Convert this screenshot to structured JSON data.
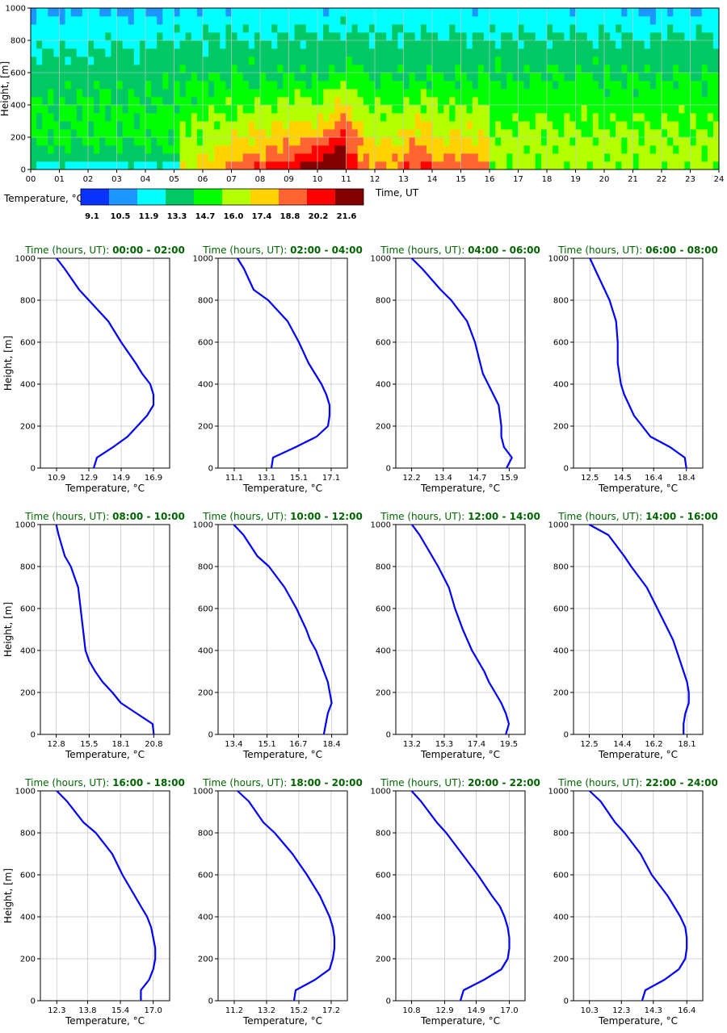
{
  "heatmap": {
    "ylabel": "Height, [m]",
    "xlabel": "Time, UT",
    "x_ticks": [
      "00",
      "01",
      "02",
      "03",
      "04",
      "05",
      "06",
      "07",
      "08",
      "09",
      "10",
      "11",
      "12",
      "13",
      "14",
      "15",
      "16",
      "17",
      "18",
      "19",
      "20",
      "21",
      "22",
      "23",
      "24"
    ],
    "y_ticks": [
      "0",
      "200",
      "400",
      "600",
      "800",
      "1000"
    ],
    "colorbar_label": "Temperature, °C",
    "colorbar_ticks": [
      "9.1",
      "10.5",
      "11.9",
      "13.3",
      "14.7",
      "16.0",
      "17.4",
      "18.8",
      "20.2",
      "21.6"
    ],
    "colors": [
      "#0a32ff",
      "#1e96ff",
      "#00ffff",
      "#00c864",
      "#00ff00",
      "#b4ff00",
      "#ffd200",
      "#ff6432",
      "#ff0000",
      "#820000"
    ]
  },
  "chart_data": [
    {
      "type": "heatmap",
      "xlabel": "Time, UT",
      "ylabel": "Height, [m]",
      "xlim": [
        0,
        24
      ],
      "ylim": [
        0,
        1000
      ],
      "colorbar": {
        "label": "Temperature, °C",
        "levels": [
          9.1,
          10.5,
          11.9,
          13.3,
          14.7,
          16.0,
          17.4,
          18.8,
          20.2,
          21.6
        ]
      },
      "height": [
        0,
        50,
        100,
        150,
        200,
        250,
        300,
        350,
        400,
        450,
        500,
        550,
        600,
        650,
        700,
        750,
        800,
        850,
        900,
        950,
        1000
      ],
      "time_hours": [
        0,
        1,
        2,
        3,
        4,
        5,
        6,
        7,
        8,
        9,
        10,
        11,
        12,
        13,
        14,
        15,
        16,
        17,
        18,
        19,
        20,
        21,
        22,
        23,
        24
      ]
    },
    {
      "type": "line",
      "title_label": "Time (hours, UT):",
      "title_value": "00:00 - 02:00",
      "xlabel": "Temperature, °C",
      "ylabel": "Height, [m]",
      "x_ticks": [
        "10.9",
        "12.9",
        "14.9",
        "16.9"
      ],
      "xlim": [
        9.9,
        17.9
      ],
      "ylim": [
        0,
        1000
      ],
      "y_ticks": [
        "0",
        "200",
        "400",
        "600",
        "800",
        "1000"
      ],
      "x": [
        13.2,
        13.4,
        14.4,
        15.3,
        15.9,
        16.5,
        16.9,
        16.9,
        16.7,
        16.2,
        15.8,
        14.9,
        14.1,
        12.9,
        12.3,
        11.4,
        10.9
      ],
      "y": [
        0,
        50,
        100,
        150,
        200,
        250,
        300,
        350,
        400,
        450,
        500,
        600,
        700,
        800,
        850,
        950,
        1000
      ]
    },
    {
      "type": "line",
      "title_label": "Time (hours, UT):",
      "title_value": "02:00 - 04:00",
      "xlabel": "Temperature, °C",
      "ylabel": "Height, [m]",
      "x_ticks": [
        "11.1",
        "13.1",
        "15.1",
        "17.1"
      ],
      "xlim": [
        10.1,
        18.1
      ],
      "ylim": [
        0,
        1000
      ],
      "y_ticks": [
        "0",
        "200",
        "400",
        "600",
        "800",
        "1000"
      ],
      "x": [
        13.4,
        13.5,
        14.9,
        16.2,
        16.9,
        17.0,
        17.0,
        16.8,
        16.5,
        16.1,
        15.7,
        15.1,
        14.4,
        13.2,
        12.3,
        11.7,
        11.3
      ],
      "y": [
        0,
        50,
        100,
        150,
        200,
        250,
        300,
        350,
        400,
        450,
        500,
        600,
        700,
        800,
        850,
        950,
        1000
      ]
    },
    {
      "type": "line",
      "title_label": "Time (hours, UT):",
      "title_value": "04:00 - 06:00",
      "xlabel": "Temperature, °C",
      "ylabel": "Height, [m]",
      "x_ticks": [
        "12.2",
        "13.4",
        "14.7",
        "15.9"
      ],
      "xlim": [
        11.6,
        16.5
      ],
      "ylim": [
        0,
        1000
      ],
      "y_ticks": [
        "0",
        "200",
        "400",
        "600",
        "800",
        "1000"
      ],
      "x": [
        15.8,
        16.0,
        15.7,
        15.6,
        15.6,
        15.55,
        15.5,
        15.3,
        15.1,
        14.9,
        14.8,
        14.6,
        14.3,
        13.7,
        13.3,
        12.6,
        12.2
      ],
      "y": [
        0,
        50,
        100,
        150,
        200,
        250,
        300,
        350,
        400,
        450,
        500,
        600,
        700,
        800,
        850,
        950,
        1000
      ]
    },
    {
      "type": "line",
      "title_label": "Time (hours, UT):",
      "title_value": "06:00 - 08:00",
      "xlabel": "Temperature, °C",
      "ylabel": "Height, [m]",
      "x_ticks": [
        "12.5",
        "14.5",
        "16.4",
        "18.4"
      ],
      "xlim": [
        11.5,
        19.4
      ],
      "ylim": [
        0,
        1000
      ],
      "y_ticks": [
        "0",
        "200",
        "400",
        "600",
        "800",
        "1000"
      ],
      "x": [
        18.4,
        18.3,
        17.4,
        16.2,
        15.7,
        15.2,
        14.9,
        14.6,
        14.4,
        14.3,
        14.2,
        14.2,
        14.1,
        13.7,
        13.4,
        12.8,
        12.5
      ],
      "y": [
        0,
        50,
        100,
        150,
        200,
        250,
        300,
        350,
        400,
        450,
        500,
        600,
        700,
        800,
        850,
        950,
        1000
      ]
    },
    {
      "type": "line",
      "title_label": "Time (hours, UT):",
      "title_value": "08:00 - 10:00",
      "xlabel": "Temperature, °C",
      "ylabel": "Height, [m]",
      "x_ticks": [
        "12.8",
        "15.5",
        "18.1",
        "20.8"
      ],
      "xlim": [
        11.5,
        22.1
      ],
      "ylim": [
        0,
        1000
      ],
      "y_ticks": [
        "0",
        "200",
        "400",
        "600",
        "800",
        "1000"
      ],
      "x": [
        20.8,
        20.7,
        19.4,
        18.1,
        17.4,
        16.6,
        16.0,
        15.5,
        15.2,
        15.1,
        15.0,
        14.8,
        14.6,
        14.0,
        13.5,
        13.0,
        12.8
      ],
      "y": [
        0,
        50,
        100,
        150,
        200,
        250,
        300,
        350,
        400,
        450,
        500,
        600,
        700,
        800,
        850,
        950,
        1000
      ]
    },
    {
      "type": "line",
      "title_label": "Time (hours, UT):",
      "title_value": "10:00 - 12:00",
      "xlabel": "Temperature, °C",
      "ylabel": "Height, [m]",
      "x_ticks": [
        "13.4",
        "15.1",
        "16.7",
        "18.4"
      ],
      "xlim": [
        12.6,
        19.2
      ],
      "ylim": [
        0,
        1000
      ],
      "y_ticks": [
        "0",
        "200",
        "400",
        "600",
        "800",
        "1000"
      ],
      "x": [
        18.0,
        18.1,
        18.2,
        18.4,
        18.3,
        18.2,
        18.0,
        17.8,
        17.6,
        17.3,
        17.1,
        16.6,
        16.0,
        15.2,
        14.6,
        13.9,
        13.4
      ],
      "y": [
        0,
        50,
        100,
        150,
        200,
        250,
        300,
        350,
        400,
        450,
        500,
        600,
        700,
        800,
        850,
        950,
        1000
      ]
    },
    {
      "type": "line",
      "title_label": "Time (hours, UT):",
      "title_value": "12:00 - 14:00",
      "xlabel": "Temperature, °C",
      "ylabel": "Height, [m]",
      "x_ticks": [
        "13.2",
        "15.3",
        "17.4",
        "19.5"
      ],
      "xlim": [
        12.15,
        20.55
      ],
      "ylim": [
        0,
        1000
      ],
      "y_ticks": [
        "0",
        "200",
        "400",
        "600",
        "800",
        "1000"
      ],
      "x": [
        19.3,
        19.5,
        19.3,
        19.0,
        18.6,
        18.2,
        17.9,
        17.5,
        17.1,
        16.8,
        16.5,
        16.0,
        15.6,
        14.9,
        14.5,
        13.7,
        13.2
      ],
      "y": [
        0,
        50,
        100,
        150,
        200,
        250,
        300,
        350,
        400,
        450,
        500,
        600,
        700,
        800,
        850,
        950,
        1000
      ]
    },
    {
      "type": "line",
      "title_label": "Time (hours, UT):",
      "title_value": "14:00 - 16:00",
      "xlabel": "Temperature, °C",
      "ylabel": "Height, [m]",
      "x_ticks": [
        "12.5",
        "14.4",
        "16.2",
        "18.1"
      ],
      "xlim": [
        11.6,
        19.0
      ],
      "ylim": [
        0,
        1000
      ],
      "y_ticks": [
        "0",
        "200",
        "400",
        "600",
        "800",
        "1000"
      ],
      "x": [
        17.9,
        17.9,
        18.0,
        18.2,
        18.2,
        18.1,
        17.9,
        17.7,
        17.5,
        17.3,
        17.0,
        16.4,
        15.8,
        14.9,
        14.5,
        13.6,
        12.5
      ],
      "y": [
        0,
        50,
        100,
        150,
        200,
        250,
        300,
        350,
        400,
        450,
        500,
        600,
        700,
        800,
        850,
        950,
        1000
      ]
    },
    {
      "type": "line",
      "title_label": "Time (hours, UT):",
      "title_value": "16:00 - 18:00",
      "xlabel": "Temperature, °C",
      "ylabel": "Height, [m]",
      "x_ticks": [
        "12.3",
        "13.8",
        "15.4",
        "17.0"
      ],
      "xlim": [
        11.5,
        17.8
      ],
      "ylim": [
        0,
        1000
      ],
      "y_ticks": [
        "0",
        "200",
        "400",
        "600",
        "800",
        "1000"
      ],
      "x": [
        16.4,
        16.4,
        16.8,
        17.0,
        17.1,
        17.1,
        17.0,
        16.9,
        16.7,
        16.4,
        16.1,
        15.5,
        15.0,
        14.2,
        13.6,
        12.8,
        12.3
      ],
      "y": [
        0,
        50,
        100,
        150,
        200,
        250,
        300,
        350,
        400,
        450,
        500,
        600,
        700,
        800,
        850,
        950,
        1000
      ]
    },
    {
      "type": "line",
      "title_label": "Time (hours, UT):",
      "title_value": "18:00 - 20:00",
      "xlabel": "Temperature, °C",
      "ylabel": "Height, [m]",
      "x_ticks": [
        "11.2",
        "13.2",
        "15.2",
        "17.2"
      ],
      "xlim": [
        10.2,
        18.2
      ],
      "ylim": [
        0,
        1000
      ],
      "y_ticks": [
        "0",
        "200",
        "400",
        "600",
        "800",
        "1000"
      ],
      "x": [
        14.9,
        15.0,
        16.2,
        17.1,
        17.3,
        17.4,
        17.4,
        17.3,
        17.1,
        16.8,
        16.5,
        15.7,
        14.8,
        13.7,
        13.0,
        12.1,
        11.4
      ],
      "y": [
        0,
        50,
        100,
        150,
        200,
        250,
        300,
        350,
        400,
        450,
        500,
        600,
        700,
        800,
        850,
        950,
        1000
      ]
    },
    {
      "type": "line",
      "title_label": "Time (hours, UT):",
      "title_value": "20:00 - 22:00",
      "xlabel": "Temperature, °C",
      "ylabel": "Height, [m]",
      "x_ticks": [
        "10.8",
        "12.9",
        "14.9",
        "17.0"
      ],
      "xlim": [
        9.8,
        18.0
      ],
      "ylim": [
        0,
        1000
      ],
      "y_ticks": [
        "0",
        "200",
        "400",
        "600",
        "800",
        "1000"
      ],
      "x": [
        13.9,
        14.1,
        15.4,
        16.5,
        16.9,
        17.0,
        17.0,
        16.9,
        16.7,
        16.4,
        15.9,
        15.0,
        14.0,
        13.0,
        12.4,
        11.4,
        10.8
      ],
      "y": [
        0,
        50,
        100,
        150,
        200,
        250,
        300,
        350,
        400,
        450,
        500,
        600,
        700,
        800,
        850,
        950,
        1000
      ]
    },
    {
      "type": "line",
      "title_label": "Time (hours, UT):",
      "title_value": "22:00 - 24:00",
      "xlabel": "Temperature, °C",
      "ylabel": "Height, [m]",
      "x_ticks": [
        "10.3",
        "12.3",
        "14.3",
        "16.4"
      ],
      "xlim": [
        9.3,
        17.4
      ],
      "ylim": [
        0,
        1000
      ],
      "y_ticks": [
        "0",
        "200",
        "400",
        "600",
        "800",
        "1000"
      ],
      "x": [
        13.6,
        13.8,
        15.0,
        15.9,
        16.3,
        16.4,
        16.4,
        16.3,
        16.0,
        15.6,
        15.2,
        14.2,
        13.5,
        12.5,
        11.9,
        11.0,
        10.3
      ],
      "y": [
        0,
        50,
        100,
        150,
        200,
        250,
        300,
        350,
        400,
        450,
        500,
        600,
        700,
        800,
        850,
        950,
        1000
      ]
    }
  ]
}
